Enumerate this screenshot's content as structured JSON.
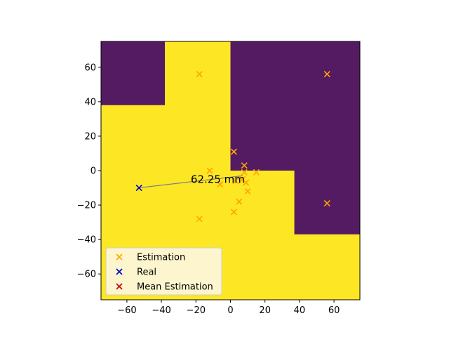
{
  "chart_data": {
    "type": "scatter",
    "title": "",
    "xlabel": "",
    "ylabel": "",
    "xlim": [
      -75,
      75
    ],
    "ylim": [
      -75,
      75
    ],
    "x_ticks": [
      -60,
      -40,
      -20,
      0,
      20,
      40,
      60
    ],
    "y_ticks": [
      -60,
      -40,
      -20,
      0,
      20,
      40,
      60
    ],
    "grid": false,
    "background_map": {
      "colors": {
        "low": "#541b63",
        "high": "#fde725"
      },
      "low_regions": [
        {
          "x": [
            -75,
            -38
          ],
          "y": [
            38,
            75
          ]
        },
        {
          "x": [
            0,
            75
          ],
          "y": [
            0,
            75
          ]
        },
        {
          "x": [
            37,
            75
          ],
          "y": [
            -37,
            0
          ]
        }
      ]
    },
    "series": [
      {
        "name": "Estimation",
        "marker": "x",
        "color": "#ffa500",
        "points": [
          [
            -18,
            56
          ],
          [
            56,
            56
          ],
          [
            2,
            11
          ],
          [
            8,
            3
          ],
          [
            -12,
            0
          ],
          [
            8,
            -1
          ],
          [
            15,
            -1
          ],
          [
            3,
            -6
          ],
          [
            7,
            -5
          ],
          [
            9,
            -7
          ],
          [
            -6,
            -8
          ],
          [
            10,
            -12
          ],
          [
            5,
            -18
          ],
          [
            2,
            -24
          ],
          [
            -18,
            -28
          ],
          [
            56,
            -19
          ]
        ]
      },
      {
        "name": "Real",
        "marker": "x",
        "color": "#0000cc",
        "points": [
          [
            -53,
            -10
          ]
        ]
      },
      {
        "name": "Mean Estimation",
        "marker": "x",
        "color": "#cc0000",
        "points": []
      }
    ],
    "connector": {
      "from": [
        -53,
        -10
      ],
      "to": [
        7,
        -3
      ],
      "color": "#808080"
    },
    "annotation": {
      "text": "62.25 mm",
      "x": -23,
      "y": -3
    },
    "legend": {
      "placement": "lower-left"
    }
  }
}
